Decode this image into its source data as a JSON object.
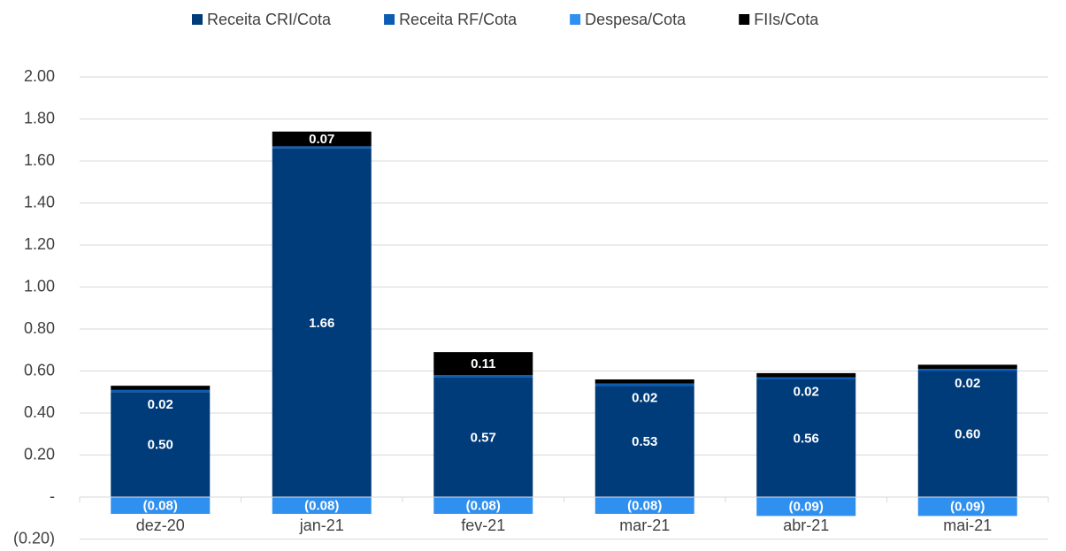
{
  "chart_data": {
    "type": "stacked_bar",
    "categories": [
      "dez-20",
      "jan-21",
      "fev-21",
      "mar-21",
      "abr-21",
      "mai-21"
    ],
    "series": [
      {
        "name": "Receita CRI/Cota",
        "color": "#003b7a",
        "values": [
          0.5,
          1.66,
          0.57,
          0.53,
          0.56,
          0.6
        ],
        "value_labels": [
          "0.50",
          "1.66",
          "0.57",
          "0.53",
          "0.56",
          "0.60"
        ]
      },
      {
        "name": "Receita RF/Cota",
        "color": "#0b5cb3",
        "values": [
          0.01,
          0.01,
          0.01,
          0.01,
          0.01,
          0.01
        ]
      },
      {
        "name": "Despesa/Cota",
        "color": "#3090f0",
        "values": [
          -0.08,
          -0.08,
          -0.08,
          -0.08,
          -0.09,
          -0.09
        ],
        "value_labels": [
          "(0.08)",
          "(0.08)",
          "(0.08)",
          "(0.08)",
          "(0.09)",
          "(0.09)"
        ]
      },
      {
        "name": "FIIs/Cota",
        "color": "#000000",
        "values": [
          0.02,
          0.07,
          0.11,
          0.02,
          0.02,
          0.02
        ],
        "value_labels": [
          "0.02",
          "0.07",
          "0.11",
          "0.02",
          "0.02",
          "0.02"
        ]
      }
    ],
    "ylim": [
      -0.2,
      2.0
    ],
    "yticks": [
      {
        "value": -0.2,
        "label": "(0.20)"
      },
      {
        "value": 0,
        "label": "-"
      },
      {
        "value": 0.2,
        "label": "0.20"
      },
      {
        "value": 0.4,
        "label": "0.40"
      },
      {
        "value": 0.6,
        "label": "0.60"
      },
      {
        "value": 0.8,
        "label": "0.80"
      },
      {
        "value": 1.0,
        "label": "1.00"
      },
      {
        "value": 1.2,
        "label": "1.20"
      },
      {
        "value": 1.4,
        "label": "1.40"
      },
      {
        "value": 1.6,
        "label": "1.60"
      },
      {
        "value": 1.8,
        "label": "1.80"
      },
      {
        "value": 2.0,
        "label": "2.00"
      }
    ],
    "grid": true,
    "legend": "top"
  }
}
